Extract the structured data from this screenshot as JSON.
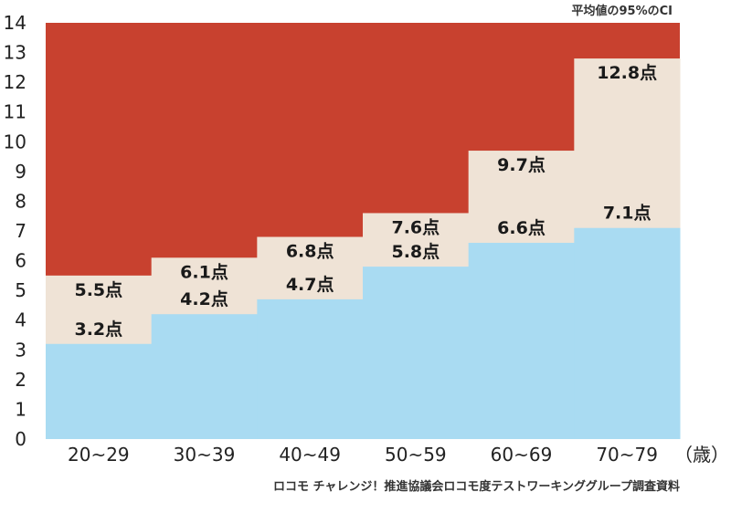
{
  "chart_data": {
    "type": "area",
    "categories": [
      "20~29",
      "30~39",
      "40~49",
      "50~59",
      "60~69",
      "70~79"
    ],
    "series": [
      {
        "values": [
          3.2,
          4.2,
          4.7,
          5.8,
          6.6,
          7.1
        ],
        "labels": [
          "3.2点",
          "4.2点",
          "4.7点",
          "5.8点",
          "6.6点",
          "7.1点"
        ]
      },
      {
        "values": [
          5.5,
          6.1,
          6.8,
          7.6,
          9.7,
          12.8
        ],
        "labels": [
          "5.5点",
          "6.1点",
          "6.8点",
          "7.6点",
          "9.7点",
          "12.8点"
        ]
      }
    ],
    "ylim": [
      0,
      14
    ],
    "yticks": [
      "0",
      "1",
      "2",
      "3",
      "4",
      "5",
      "6",
      "7",
      "8",
      "9",
      "10",
      "11",
      "12",
      "13",
      "14"
    ],
    "title": "平均値の95%のCI",
    "xunit": "（歳）",
    "source": "ロコモ チャレンジ！推進協議会ロコモ度テストワーキンググループ調査資料",
    "grid": false,
    "colors": {
      "lower": "#a9dbf2",
      "band": "#efe3d6",
      "upper": "#c8412f"
    }
  }
}
